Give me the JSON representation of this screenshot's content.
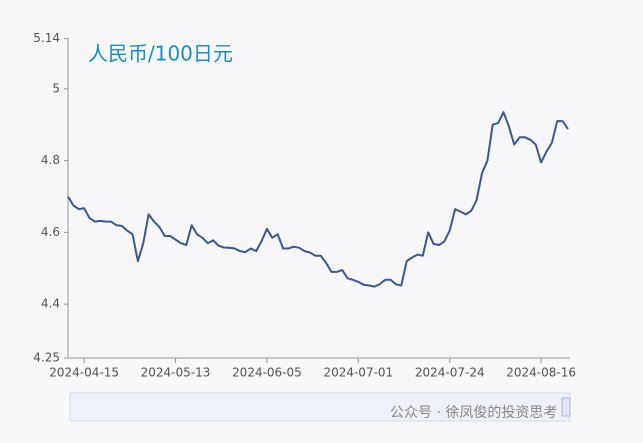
{
  "chart_data": {
    "type": "line",
    "title": "人民币/100日元",
    "categories": [
      null,
      null,
      null,
      "2024-04-15",
      null,
      null,
      null,
      null,
      null,
      null,
      null,
      null,
      null,
      null,
      null,
      null,
      null,
      null,
      null,
      null,
      "2024-05-13",
      null,
      null,
      null,
      null,
      null,
      null,
      null,
      null,
      null,
      null,
      null,
      null,
      null,
      null,
      null,
      null,
      "2024-06-05",
      null,
      null,
      null,
      null,
      null,
      null,
      null,
      null,
      null,
      null,
      null,
      null,
      null,
      null,
      null,
      null,
      "2024-07-01",
      null,
      null,
      null,
      null,
      null,
      null,
      null,
      null,
      null,
      null,
      null,
      null,
      null,
      null,
      null,
      null,
      "2024-07-24",
      null,
      null,
      null,
      null,
      null,
      null,
      null,
      null,
      null,
      null,
      null,
      null,
      null,
      null,
      null,
      null,
      "2024-08-16",
      null,
      null,
      null,
      null,
      null
    ],
    "series": [
      {
        "name": "人民币/100日元",
        "color": "#3b5797",
        "values": [
          4.7,
          4.675,
          4.665,
          4.667,
          4.64,
          4.63,
          4.632,
          4.63,
          4.63,
          4.62,
          4.618,
          4.605,
          4.595,
          4.52,
          4.57,
          4.65,
          4.63,
          4.615,
          4.59,
          4.59,
          4.58,
          4.57,
          4.565,
          4.62,
          4.595,
          4.585,
          4.57,
          4.578,
          4.563,
          4.558,
          4.557,
          4.555,
          4.548,
          4.545,
          4.555,
          4.548,
          4.575,
          4.61,
          4.585,
          4.595,
          4.555,
          4.555,
          4.56,
          4.557,
          4.548,
          4.544,
          4.535,
          4.535,
          4.515,
          4.49,
          4.49,
          4.495,
          4.472,
          4.468,
          4.462,
          4.454,
          4.452,
          4.449,
          4.456,
          4.468,
          4.468,
          4.455,
          4.452,
          4.52,
          4.53,
          4.538,
          4.535,
          4.6,
          4.568,
          4.565,
          4.575,
          4.605,
          4.665,
          4.658,
          4.65,
          4.66,
          4.69,
          4.765,
          4.8,
          4.9,
          4.905,
          4.935,
          4.895,
          4.845,
          4.865,
          4.865,
          4.858,
          4.845,
          4.795,
          4.825,
          4.85,
          4.91,
          4.91,
          4.888
        ]
      }
    ],
    "ylim": [
      4.25,
      5.14
    ],
    "yticks": [
      4.25,
      4.4,
      4.6,
      4.8,
      5,
      5.14
    ],
    "watermark": "公众号 · 徐凤俊的投资思考"
  }
}
